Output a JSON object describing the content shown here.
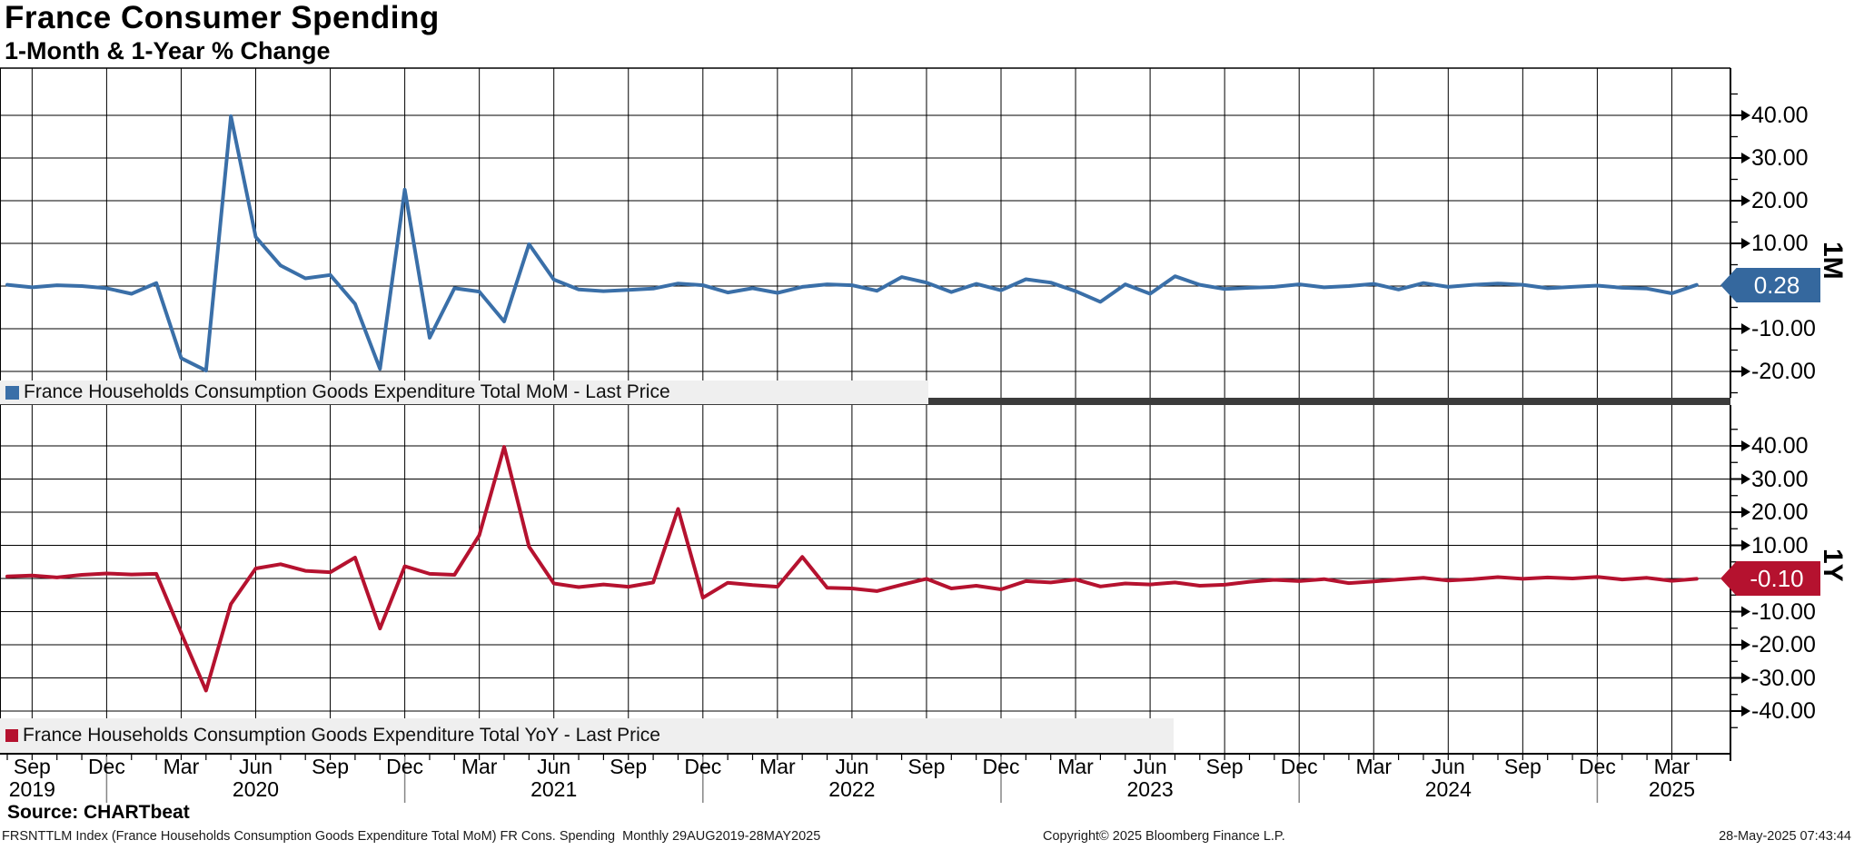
{
  "title": "France Consumer Spending",
  "subtitle": "1-Month & 1-Year % Change",
  "colors": {
    "mom_line": "#3a6fa8",
    "yoy_line": "#b5122f",
    "grid": "#000000",
    "legend_bg": "#efefef",
    "separator": "#3b3b3b",
    "badge_mom_bg": "#35689e",
    "badge_yoy_bg": "#b5122f",
    "badge_text": "#ffffff",
    "year_separator": "#858585"
  },
  "panels": {
    "top": {
      "axis_title": "1M",
      "badge_label": "0.28",
      "badge_value": 0.28,
      "y_major_labels": [
        {
          "label": "40.00",
          "value": 40
        },
        {
          "label": "30.00",
          "value": 30
        },
        {
          "label": "20.00",
          "value": 20
        },
        {
          "label": "10.00",
          "value": 10
        },
        {
          "label": "-10.00",
          "value": -10
        },
        {
          "label": "-20.00",
          "value": -20
        }
      ]
    },
    "bottom": {
      "axis_title": "1Y",
      "badge_label": "-0.10",
      "badge_value": -0.1,
      "y_major_labels": [
        {
          "label": "40.00",
          "value": 40
        },
        {
          "label": "30.00",
          "value": 30
        },
        {
          "label": "20.00",
          "value": 20
        },
        {
          "label": "10.00",
          "value": 10
        },
        {
          "label": "-10.00",
          "value": -10
        },
        {
          "label": "-20.00",
          "value": -20
        },
        {
          "label": "-30.00",
          "value": -30
        },
        {
          "label": "-40.00",
          "value": -40
        }
      ]
    }
  },
  "x_axis": {
    "month_ticks": [
      {
        "m": 1,
        "label": "Sep"
      },
      {
        "m": 4,
        "label": "Dec"
      },
      {
        "m": 7,
        "label": "Mar"
      },
      {
        "m": 10,
        "label": "Jun"
      },
      {
        "m": 13,
        "label": "Sep"
      },
      {
        "m": 16,
        "label": "Dec"
      },
      {
        "m": 19,
        "label": "Mar"
      },
      {
        "m": 22,
        "label": "Jun"
      },
      {
        "m": 25,
        "label": "Sep"
      },
      {
        "m": 28,
        "label": "Dec"
      },
      {
        "m": 31,
        "label": "Mar"
      },
      {
        "m": 34,
        "label": "Jun"
      },
      {
        "m": 37,
        "label": "Sep"
      },
      {
        "m": 40,
        "label": "Dec"
      },
      {
        "m": 43,
        "label": "Mar"
      },
      {
        "m": 46,
        "label": "Jun"
      },
      {
        "m": 49,
        "label": "Sep"
      },
      {
        "m": 52,
        "label": "Dec"
      },
      {
        "m": 55,
        "label": "Mar"
      },
      {
        "m": 58,
        "label": "Jun"
      },
      {
        "m": 61,
        "label": "Sep"
      },
      {
        "m": 64,
        "label": "Dec"
      },
      {
        "m": 67,
        "label": "Mar"
      }
    ],
    "year_labels": [
      {
        "m": 1,
        "label": "2019"
      },
      {
        "m": 10,
        "label": "2020"
      },
      {
        "m": 22,
        "label": "2021"
      },
      {
        "m": 34,
        "label": "2022"
      },
      {
        "m": 46,
        "label": "2023"
      },
      {
        "m": 58,
        "label": "2024"
      },
      {
        "m": 67,
        "label": "2025"
      }
    ],
    "year_separator_months": [
      4,
      16,
      28,
      40,
      52,
      64
    ]
  },
  "chart_data": [
    {
      "type": "line",
      "panel": "top",
      "title": "France Consumer Spending - 1-Month % Change",
      "series": [
        {
          "name": "France Households Consumption Goods Expenditure Total MoM - Last Price",
          "color": "#3a6fa8",
          "values": [
            0.3,
            -0.3,
            0.2,
            0.0,
            -0.5,
            -1.8,
            0.7,
            -16.9,
            -19.8,
            39.8,
            11.5,
            4.8,
            1.8,
            2.6,
            -4.2,
            -19.4,
            22.6,
            -12.1,
            -0.5,
            -1.3,
            -8.3,
            9.8,
            1.5,
            -0.8,
            -1.2,
            -0.9,
            -0.6,
            0.6,
            0.2,
            -1.5,
            -0.5,
            -1.6,
            -0.2,
            0.4,
            0.2,
            -1.1,
            2.1,
            0.8,
            -1.4,
            0.5,
            -1.0,
            1.6,
            0.8,
            -1.2,
            -3.7,
            0.4,
            -1.8,
            2.3,
            0.3,
            -0.7,
            -0.4,
            -0.2,
            0.4,
            -0.3,
            0.0,
            0.5,
            -0.8,
            0.7,
            -0.2,
            0.3,
            0.6,
            0.3,
            -0.5,
            -0.2,
            0.1,
            -0.4,
            -0.6,
            -1.7,
            0.28
          ]
        }
      ],
      "x_start": "2019-08",
      "x_end": "2025-04",
      "frequency": "monthly",
      "ylim": [
        -26,
        51
      ],
      "y_gridlines": [
        40,
        30,
        20,
        10,
        0,
        -10,
        -20
      ],
      "last_value": 0.28,
      "legend_position": "bottom-left-inside",
      "grid": true
    },
    {
      "type": "line",
      "panel": "bottom",
      "title": "France Consumer Spending - 1-Year % Change",
      "series": [
        {
          "name": "France Households Consumption Goods Expenditure Total YoY - Last Price",
          "color": "#b5122f",
          "values": [
            0.6,
            0.9,
            0.3,
            1.1,
            1.5,
            1.2,
            1.4,
            -16.5,
            -33.8,
            -7.7,
            3.0,
            4.3,
            2.3,
            1.9,
            6.3,
            -15.1,
            3.7,
            1.4,
            1.1,
            13.0,
            39.7,
            9.6,
            -1.5,
            -2.6,
            -1.8,
            -2.5,
            -1.2,
            21.0,
            -5.8,
            -1.3,
            -2.0,
            -2.5,
            6.5,
            -2.8,
            -3.0,
            -3.8,
            -1.9,
            -0.1,
            -3.0,
            -2.2,
            -3.3,
            -0.8,
            -1.2,
            -0.3,
            -2.4,
            -1.5,
            -1.8,
            -1.2,
            -2.2,
            -1.9,
            -1.0,
            -0.4,
            -0.8,
            -0.2,
            -1.4,
            -0.9,
            -0.3,
            0.2,
            -0.6,
            -0.2,
            0.4,
            -0.1,
            0.3,
            0.0,
            0.5,
            -0.3,
            0.2,
            -0.7,
            -0.1
          ]
        }
      ],
      "x_start": "2019-08",
      "x_end": "2025-04",
      "frequency": "monthly",
      "ylim": [
        -53,
        52
      ],
      "y_gridlines": [
        40,
        30,
        20,
        10,
        0,
        -10,
        -20,
        -30,
        -40
      ],
      "last_value": -0.1,
      "legend_position": "bottom-left-inside",
      "grid": true
    }
  ],
  "footer": {
    "source": "Source: CHARTbeat",
    "ticker_line": "FRSNTTLM Index (France Households Consumption Goods Expenditure Total MoM) FR Cons. Spending  Monthly 29AUG2019-28MAY2025",
    "copyright": "Copyright© 2025 Bloomberg Finance L.P.",
    "timestamp": "28-May-2025 07:43:44"
  }
}
